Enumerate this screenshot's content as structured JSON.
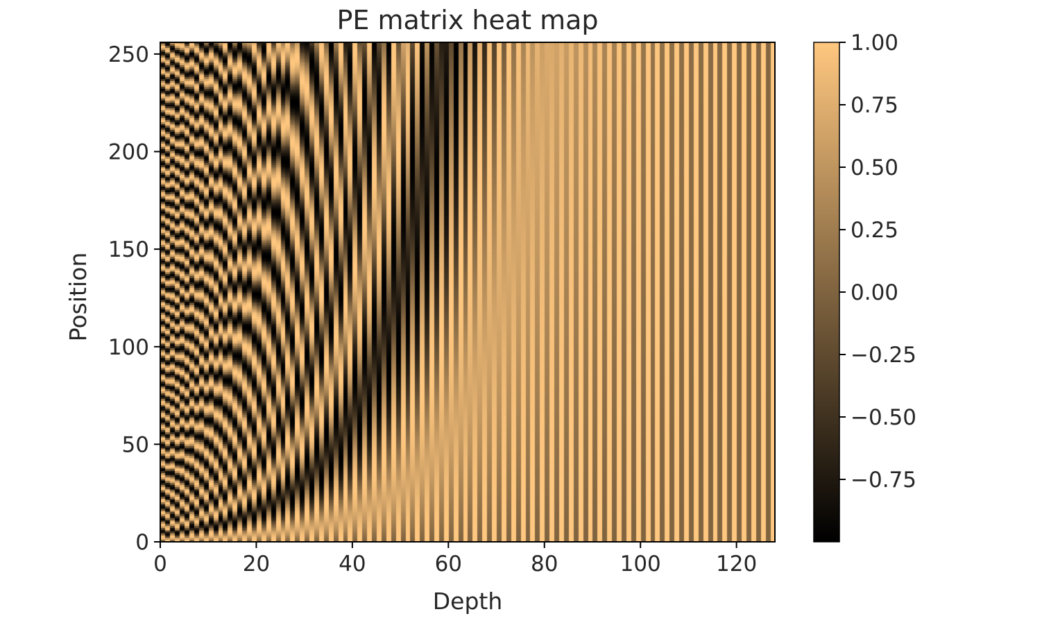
{
  "chart_data": {
    "type": "heatmap",
    "title": "PE matrix heat map",
    "xlabel": "Depth",
    "ylabel": "Position",
    "xlim": [
      0,
      128
    ],
    "ylim": [
      0,
      256
    ],
    "x_ticks": [
      "0",
      "20",
      "40",
      "60",
      "80",
      "100",
      "120"
    ],
    "x_tick_values": [
      0,
      20,
      40,
      60,
      80,
      100,
      120
    ],
    "y_ticks": [
      "0",
      "50",
      "100",
      "150",
      "200",
      "250"
    ],
    "y_tick_values": [
      0,
      50,
      100,
      150,
      200,
      250
    ],
    "rows": 256,
    "cols": 128,
    "d_model": 128,
    "encoding": "sinusoidal positional encoding: even depth sin(pos / 10000^(i/d_model)), odd depth cos(pos / 10000^((i-1)/d_model))",
    "colormap": "copper",
    "colormap_colors": [
      "#000000",
      "#ffc77f"
    ],
    "grid": false,
    "colorbar": {
      "vmin": -1.0,
      "vmax": 1.0,
      "ticks": [
        "1.00",
        "0.75",
        "0.50",
        "0.25",
        "0.00",
        "−0.25",
        "−0.50",
        "−0.75"
      ],
      "tick_values": [
        1.0,
        0.75,
        0.5,
        0.25,
        0.0,
        -0.25,
        -0.5,
        -0.75
      ],
      "placement": "right"
    }
  }
}
